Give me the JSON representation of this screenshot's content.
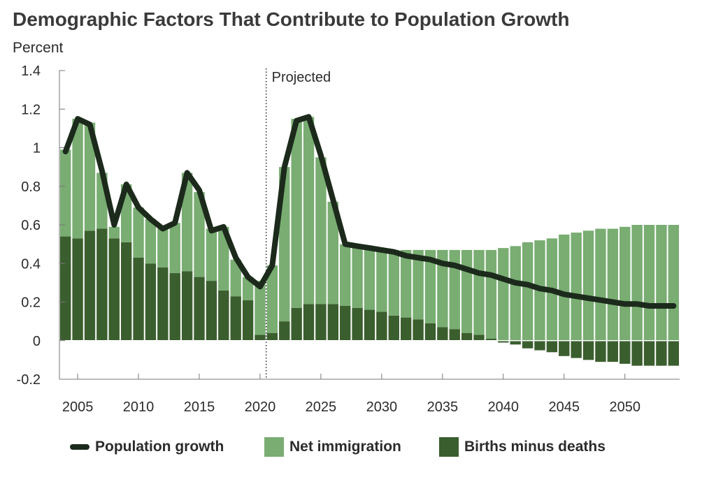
{
  "title": "Demographic Factors That Contribute to Population Growth",
  "subtitle": "Percent",
  "colors": {
    "births": "#3b5e2e",
    "immigration": "#79ad72",
    "growth": "#1c2a1c",
    "axis": "#777777"
  },
  "legend": {
    "growth": "Population growth",
    "immigration": "Net immigration",
    "births": "Births minus deaths"
  },
  "chart_data": {
    "type": "bar",
    "stacked": true,
    "annotation": "Projected",
    "annotation_x": 2020.5,
    "ylim": [
      -0.2,
      1.4
    ],
    "xlim": [
      2003.5,
      2054.5
    ],
    "y_ticks": [
      "1.4",
      "1.2",
      "1",
      "0.8",
      "0.6",
      "0.4",
      "0.2",
      "0",
      "-0.2"
    ],
    "y_tick_values": [
      1.4,
      1.2,
      1.0,
      0.8,
      0.6,
      0.4,
      0.2,
      0,
      -0.2
    ],
    "x_ticks": [
      "2005",
      "2010",
      "2015",
      "2020",
      "2025",
      "2030",
      "2035",
      "2040",
      "2045",
      "2050"
    ],
    "x_tick_values": [
      2005,
      2010,
      2015,
      2020,
      2025,
      2030,
      2035,
      2040,
      2045,
      2050
    ],
    "years": [
      2004,
      2005,
      2006,
      2007,
      2008,
      2009,
      2010,
      2011,
      2012,
      2013,
      2014,
      2015,
      2016,
      2017,
      2018,
      2019,
      2020,
      2021,
      2022,
      2023,
      2024,
      2025,
      2026,
      2027,
      2028,
      2029,
      2030,
      2031,
      2032,
      2033,
      2034,
      2035,
      2036,
      2037,
      2038,
      2039,
      2040,
      2041,
      2042,
      2043,
      2044,
      2045,
      2046,
      2047,
      2048,
      2049,
      2050,
      2051,
      2052,
      2053,
      2054
    ],
    "series": [
      {
        "name": "Births minus deaths",
        "values": [
          0.54,
          0.53,
          0.57,
          0.58,
          0.53,
          0.51,
          0.43,
          0.4,
          0.38,
          0.35,
          0.36,
          0.33,
          0.31,
          0.26,
          0.23,
          0.21,
          0.03,
          0.04,
          0.1,
          0.17,
          0.19,
          0.19,
          0.19,
          0.18,
          0.17,
          0.16,
          0.15,
          0.13,
          0.12,
          0.11,
          0.09,
          0.07,
          0.06,
          0.04,
          0.03,
          0.01,
          -0.01,
          -0.02,
          -0.04,
          -0.05,
          -0.06,
          -0.08,
          -0.09,
          -0.1,
          -0.11,
          -0.11,
          -0.12,
          -0.13,
          -0.13,
          -0.13,
          -0.13
        ]
      },
      {
        "name": "Net immigration",
        "values": [
          0.45,
          0.62,
          0.56,
          0.29,
          0.06,
          0.3,
          0.26,
          0.23,
          0.2,
          0.26,
          0.51,
          0.44,
          0.27,
          0.33,
          0.19,
          0.12,
          0.28,
          0.35,
          0.8,
          0.98,
          0.97,
          0.76,
          0.53,
          0.32,
          0.33,
          0.33,
          0.32,
          0.34,
          0.35,
          0.36,
          0.38,
          0.4,
          0.41,
          0.43,
          0.44,
          0.46,
          0.48,
          0.49,
          0.51,
          0.52,
          0.53,
          0.55,
          0.56,
          0.57,
          0.58,
          0.58,
          0.59,
          0.6,
          0.6,
          0.6,
          0.6
        ]
      },
      {
        "name": "Population growth",
        "type": "line",
        "values": [
          0.98,
          1.15,
          1.12,
          0.88,
          0.6,
          0.81,
          0.69,
          0.63,
          0.58,
          0.61,
          0.87,
          0.78,
          0.57,
          0.59,
          0.43,
          0.33,
          0.28,
          0.39,
          0.9,
          1.14,
          1.16,
          0.96,
          0.73,
          0.5,
          0.49,
          0.48,
          0.47,
          0.46,
          0.44,
          0.43,
          0.42,
          0.4,
          0.39,
          0.37,
          0.35,
          0.34,
          0.32,
          0.3,
          0.29,
          0.27,
          0.26,
          0.24,
          0.23,
          0.22,
          0.21,
          0.2,
          0.19,
          0.19,
          0.18,
          0.18,
          0.18
        ]
      }
    ]
  }
}
